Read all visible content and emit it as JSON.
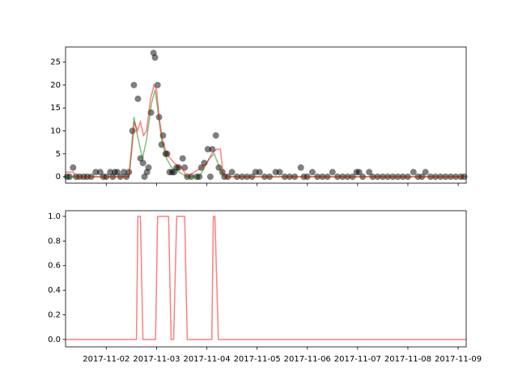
{
  "chart_data": [
    {
      "type": "scatter",
      "ylim": [
        -1.4,
        28.3
      ],
      "yticks": [
        0,
        5,
        10,
        15,
        20,
        25
      ],
      "xlim": [
        1.19,
        9.16
      ],
      "alpha": 0.5,
      "series": [
        {
          "kind": "scatter",
          "color": "#000000",
          "x": [
            1.22,
            1.27,
            1.34,
            1.4,
            1.47,
            1.55,
            1.62,
            1.7,
            1.79,
            1.88,
            1.94,
            2.0,
            2.08,
            2.13,
            2.17,
            2.22,
            2.28,
            2.35,
            2.4,
            2.45,
            2.52,
            2.55,
            2.63,
            2.68,
            2.73,
            2.76,
            2.81,
            2.84,
            2.89,
            2.94,
            2.97,
            3.02,
            3.05,
            3.1,
            3.13,
            3.18,
            3.21,
            3.26,
            3.31,
            3.35,
            3.4,
            3.44,
            3.52,
            3.56,
            3.61,
            3.69,
            3.8,
            3.85,
            3.89,
            3.95,
            4.02,
            4.07,
            4.11,
            4.18,
            4.24,
            4.31,
            4.35,
            4.42,
            4.5,
            4.6,
            4.7,
            4.8,
            4.9,
            4.97,
            5.05,
            5.15,
            5.25,
            5.37,
            5.45,
            5.55,
            5.65,
            5.75,
            5.87,
            5.93,
            6.0,
            6.1,
            6.2,
            6.3,
            6.4,
            6.5,
            6.6,
            6.7,
            6.8,
            6.9,
            6.98,
            7.03,
            7.1,
            7.23,
            7.3,
            7.4,
            7.5,
            7.6,
            7.7,
            7.8,
            7.9,
            8.0,
            8.11,
            8.2,
            8.28,
            8.35,
            8.45,
            8.55,
            8.65,
            8.75,
            8.85,
            8.95,
            9.05,
            9.12
          ],
          "values": [
            0,
            0,
            2,
            0,
            0,
            0,
            0,
            0,
            1,
            1,
            0,
            0,
            1,
            0,
            1,
            1,
            0,
            1,
            0,
            1,
            10,
            20,
            17,
            4,
            3,
            0,
            1,
            2,
            14,
            27,
            26,
            20,
            13,
            7,
            9,
            5,
            5,
            1,
            1,
            1,
            2,
            2,
            4,
            2,
            0,
            0,
            0,
            0,
            2,
            3,
            6,
            0,
            6,
            9,
            2,
            1,
            0,
            0,
            1,
            0,
            0,
            0,
            0,
            1,
            1,
            0,
            0,
            1,
            1,
            0,
            0,
            0,
            2,
            0,
            0,
            1,
            0,
            0,
            0,
            1,
            0,
            0,
            0,
            0,
            1,
            1,
            0,
            1,
            0,
            0,
            0,
            0,
            0,
            0,
            0,
            0,
            1,
            0,
            0,
            1,
            0,
            0,
            0,
            0,
            0,
            0,
            0,
            0
          ]
        },
        {
          "kind": "line",
          "color": "#008000",
          "x": [
            1.19,
            2.45,
            2.5,
            2.55,
            2.62,
            2.72,
            2.8,
            2.9,
            2.97,
            3.02,
            3.1,
            3.2,
            3.3,
            3.45,
            3.6,
            3.85,
            3.95,
            4.05,
            4.15,
            4.25,
            4.35,
            9.16
          ],
          "values": [
            0,
            0,
            6,
            13,
            9,
            4,
            8,
            16,
            19,
            15,
            8,
            4,
            2,
            1,
            0,
            0,
            2,
            4,
            5,
            2,
            0,
            0
          ]
        },
        {
          "kind": "line",
          "color": "#ff0000",
          "x": [
            1.19,
            1.27,
            1.35,
            1.37,
            2.45,
            2.5,
            2.56,
            2.62,
            2.68,
            2.74,
            2.8,
            2.88,
            2.95,
            3.0,
            3.05,
            3.12,
            3.2,
            3.35,
            3.5,
            3.6,
            3.9,
            4.0,
            4.1,
            4.2,
            4.27,
            4.32,
            4.38,
            9.16
          ],
          "values": [
            1,
            1,
            1,
            0,
            0,
            5,
            12,
            10,
            12,
            9,
            10,
            17,
            20,
            19,
            13,
            8,
            5,
            3,
            2,
            0,
            2,
            3,
            5,
            6,
            6,
            1,
            0,
            0
          ]
        }
      ]
    },
    {
      "type": "line",
      "ylim": [
        -0.06,
        1.046
      ],
      "yticks": [
        {
          "value": 0,
          "label": "0.0"
        },
        {
          "value": 0.2,
          "label": "0.2"
        },
        {
          "value": 0.4,
          "label": "0.4"
        },
        {
          "value": 0.6,
          "label": "0.6"
        },
        {
          "value": 0.8,
          "label": "0.8"
        },
        {
          "value": 1,
          "label": "1.0"
        }
      ],
      "xlim": [
        1.19,
        9.16
      ],
      "xticks": [
        {
          "value": 2,
          "label": "2017-11-02"
        },
        {
          "value": 3,
          "label": "2017-11-03"
        },
        {
          "value": 4,
          "label": "2017-11-04"
        },
        {
          "value": 5,
          "label": "2017-11-05"
        },
        {
          "value": 6,
          "label": "2017-11-06"
        },
        {
          "value": 7,
          "label": "2017-11-07"
        },
        {
          "value": 8,
          "label": "2017-11-08"
        },
        {
          "value": 9,
          "label": "2017-11-09"
        }
      ],
      "alpha": 0.5,
      "series": [
        {
          "kind": "line",
          "color": "#ff0000",
          "x": [
            1.19,
            2.6,
            2.63,
            2.68,
            2.73,
            2.98,
            3.02,
            3.24,
            3.29,
            3.34,
            3.4,
            3.56,
            3.61,
            4.1,
            4.13,
            4.16,
            4.23,
            9.16
          ],
          "values": [
            0,
            0,
            1,
            1,
            0,
            0,
            1,
            1,
            0,
            0,
            1,
            1,
            0,
            0,
            1,
            1,
            0,
            0
          ]
        }
      ]
    }
  ]
}
